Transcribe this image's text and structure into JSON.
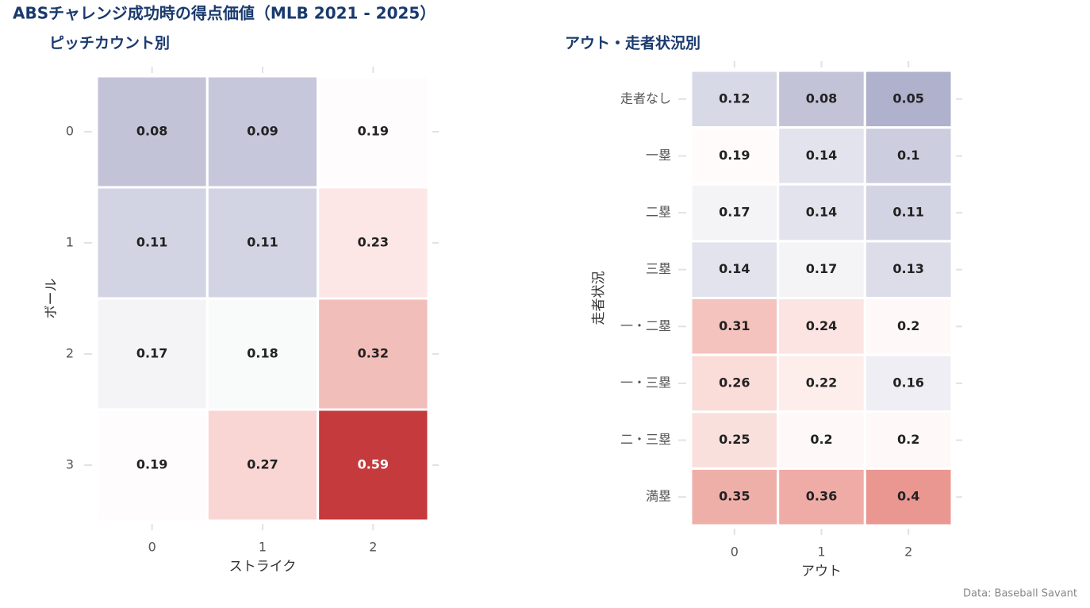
{
  "title": "ABSチャレンジ成功時の得点価値（MLB 2021 - 2025）",
  "caption": "Data: Baseball Savant",
  "chart_data": [
    {
      "type": "heatmap",
      "title": "ピッチカウント別",
      "xlabel": "ストライク",
      "ylabel": "ボール",
      "x_categories": [
        "0",
        "1",
        "2"
      ],
      "y_categories": [
        "0",
        "1",
        "2",
        "3"
      ],
      "values": [
        [
          0.08,
          0.09,
          0.19
        ],
        [
          0.11,
          0.11,
          0.23
        ],
        [
          0.17,
          0.18,
          0.32
        ],
        [
          0.19,
          0.27,
          0.59
        ]
      ],
      "colors": [
        [
          "#c3c3d8",
          "#c7c7db",
          "#fffcfd"
        ],
        [
          "#d3d4e3",
          "#d3d4e3",
          "#fce7e6"
        ],
        [
          "#f4f4f7",
          "#f9fafa",
          "#f2beb9"
        ],
        [
          "#fffcfd",
          "#f9d6d3",
          "#c53a3c"
        ]
      ]
    },
    {
      "type": "heatmap",
      "title": "アウト・走者状況別",
      "xlabel": "アウト",
      "ylabel": "走者状況",
      "x_categories": [
        "0",
        "1",
        "2"
      ],
      "y_categories": [
        "走者なし",
        "一塁",
        "二塁",
        "三塁",
        "一・二塁",
        "一・三塁",
        "二・三塁",
        "満塁"
      ],
      "values": [
        [
          0.12,
          0.08,
          0.05
        ],
        [
          0.19,
          0.14,
          0.1
        ],
        [
          0.17,
          0.14,
          0.11
        ],
        [
          0.14,
          0.17,
          0.13
        ],
        [
          0.31,
          0.24,
          0.2
        ],
        [
          0.26,
          0.22,
          0.16
        ],
        [
          0.25,
          0.2,
          0.2
        ],
        [
          0.35,
          0.36,
          0.4
        ]
      ],
      "colors": [
        [
          "#d8d9e6",
          "#c3c3d8",
          "#afb1cd"
        ],
        [
          "#fffbfa",
          "#e3e3ed",
          "#cccddf"
        ],
        [
          "#f4f4f7",
          "#e3e3ed",
          "#d3d4e3"
        ],
        [
          "#e3e3ed",
          "#f4f4f7",
          "#dcdde9"
        ],
        [
          "#f4c3be",
          "#fbe4e2",
          "#fef9f8"
        ],
        [
          "#fadcd9",
          "#fdeeec",
          "#eeeef4"
        ],
        [
          "#fae0dd",
          "#fef9f8",
          "#fef9f8"
        ],
        [
          "#efafa9",
          "#efaca6",
          "#ea9791"
        ]
      ]
    }
  ]
}
